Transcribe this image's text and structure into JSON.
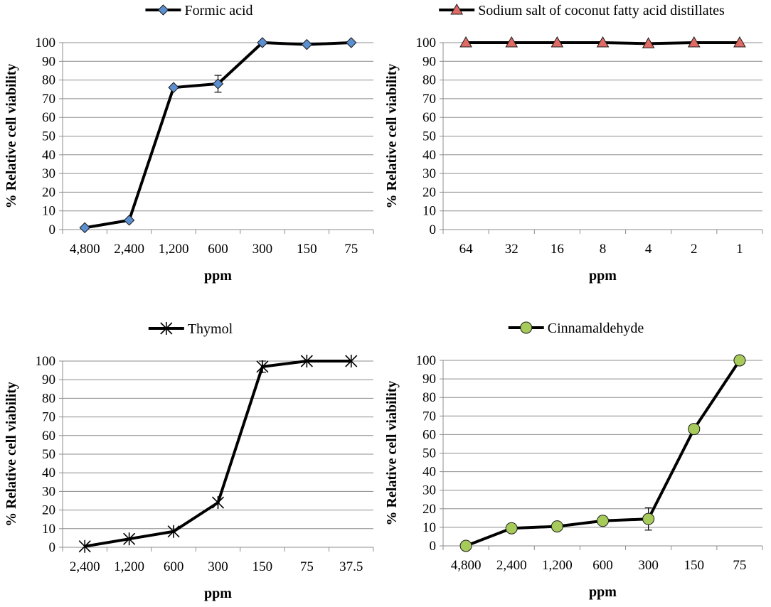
{
  "chart_data": [
    {
      "type": "line",
      "legend": "Formic acid",
      "marker": "diamond",
      "marker_color": "#5b8fd0",
      "categories": [
        "4,800",
        "2,400",
        "1,200",
        "600",
        "300",
        "150",
        "75"
      ],
      "values": [
        1,
        5,
        76,
        78,
        100,
        99,
        100
      ],
      "errors": [
        0,
        0,
        0,
        4.5,
        0,
        0,
        0
      ],
      "xlabel": "ppm",
      "ylabel": "% Relative cell viability",
      "ylim": [
        0,
        100
      ],
      "yticks": [
        "0",
        "10",
        "20",
        "30",
        "40",
        "50",
        "60",
        "70",
        "80",
        "90",
        "100"
      ]
    },
    {
      "type": "line",
      "legend": "Sodium salt of coconut fatty acid distillates",
      "marker": "triangle",
      "marker_color": "#e06a64",
      "categories": [
        "64",
        "32",
        "16",
        "8",
        "4",
        "2",
        "1"
      ],
      "values": [
        100,
        100,
        100,
        100,
        99.5,
        100,
        100
      ],
      "errors": [
        0,
        0,
        0,
        0,
        0,
        0,
        0
      ],
      "xlabel": "ppm",
      "ylabel": "% Relative cell viability",
      "ylim": [
        0,
        100
      ],
      "yticks": [
        "0",
        "10",
        "20",
        "30",
        "40",
        "50",
        "60",
        "70",
        "80",
        "90",
        "100"
      ]
    },
    {
      "type": "line",
      "legend": "Thymol",
      "marker": "star",
      "marker_color": "#000000",
      "categories": [
        "2,400",
        "1,200",
        "600",
        "300",
        "150",
        "75",
        "37.5"
      ],
      "values": [
        0.5,
        4.5,
        8.5,
        24,
        97,
        100,
        100
      ],
      "errors": [
        0,
        0,
        0,
        0,
        3,
        0,
        0
      ],
      "xlabel": "ppm",
      "ylabel": "% Relative cell viability",
      "ylim": [
        0,
        100
      ],
      "yticks": [
        "0",
        "10",
        "20",
        "30",
        "40",
        "50",
        "60",
        "70",
        "80",
        "90",
        "100"
      ]
    },
    {
      "type": "line",
      "legend": "Cinnamaldehyde",
      "marker": "circle",
      "marker_color": "#a7cb5a",
      "categories": [
        "4,800",
        "2,400",
        "1,200",
        "600",
        "300",
        "150",
        "75"
      ],
      "values": [
        0,
        9.5,
        10.5,
        13.5,
        14.5,
        63,
        100
      ],
      "errors": [
        0,
        0,
        0,
        0,
        6,
        0,
        0
      ],
      "xlabel": "ppm",
      "ylabel": "% Relative cell viability",
      "ylim": [
        0,
        100
      ],
      "yticks": [
        "0",
        "10",
        "20",
        "30",
        "40",
        "50",
        "60",
        "70",
        "80",
        "90",
        "100"
      ]
    }
  ]
}
